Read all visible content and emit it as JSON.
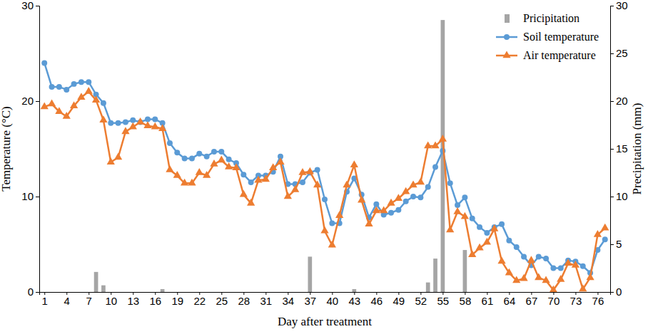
{
  "chart_data": {
    "type": "line",
    "x_label": "Day after treatment",
    "y_label": "Temperature (°C)",
    "y2_label": "Precipitation (mm)",
    "x": [
      1,
      2,
      3,
      4,
      5,
      6,
      7,
      8,
      9,
      10,
      11,
      12,
      13,
      14,
      15,
      16,
      17,
      18,
      19,
      20,
      21,
      22,
      23,
      24,
      25,
      26,
      27,
      28,
      29,
      30,
      31,
      32,
      33,
      34,
      35,
      36,
      37,
      38,
      39,
      40,
      41,
      42,
      43,
      44,
      45,
      46,
      47,
      48,
      49,
      50,
      51,
      52,
      53,
      54,
      55,
      56,
      57,
      58,
      59,
      60,
      61,
      62,
      63,
      64,
      65,
      66,
      67,
      68,
      69,
      70,
      71,
      72,
      73,
      74,
      75,
      76,
      77
    ],
    "xlim": [
      0.3,
      77.7
    ],
    "xticks": [
      1,
      4,
      7,
      10,
      13,
      16,
      19,
      22,
      25,
      28,
      31,
      34,
      37,
      40,
      43,
      46,
      49,
      52,
      55,
      58,
      61,
      64,
      67,
      70,
      73,
      76
    ],
    "ylim": [
      0,
      30
    ],
    "yticks": [
      0,
      10,
      20,
      30
    ],
    "y2lim": [
      0,
      30
    ],
    "y2ticks": [
      0,
      5,
      10,
      15,
      20,
      25,
      30
    ],
    "legend": "upper right",
    "series": [
      {
        "name": "Pricipitation",
        "type": "bar",
        "axis": "y2",
        "color": "#a5a5a5",
        "values": [
          0,
          0,
          0,
          0,
          0,
          0,
          0,
          2.1,
          0.7,
          0,
          0,
          0,
          0,
          0,
          0,
          0,
          0.3,
          0,
          0,
          0,
          0,
          0,
          0,
          0,
          0,
          0,
          0,
          0,
          0,
          0,
          0,
          0,
          0,
          0,
          0,
          0,
          3.7,
          0,
          0,
          0,
          0,
          0,
          0.3,
          0,
          0,
          0,
          0,
          0,
          0,
          0,
          0,
          0,
          1,
          3.5,
          28.5,
          0,
          0,
          4.4,
          0,
          0,
          0,
          0,
          0,
          0,
          0,
          0,
          0,
          0,
          0,
          0,
          0,
          0,
          0,
          0,
          0,
          0,
          0
        ]
      },
      {
        "name": "Soil temperature",
        "type": "line",
        "color": "#5b9bd5",
        "marker": "circle",
        "line_style": "solid",
        "values": [
          24,
          21.5,
          21.5,
          21.2,
          21.8,
          22,
          22,
          20.7,
          19.8,
          17.7,
          17.7,
          17.8,
          18,
          17.8,
          18.1,
          18.1,
          17.7,
          15.6,
          14.6,
          14,
          14,
          14.5,
          14.2,
          14.7,
          14.7,
          13.9,
          13.5,
          12.3,
          11.5,
          12.2,
          12.2,
          12.6,
          14.2,
          11.3,
          11.3,
          11.5,
          12.5,
          12.8,
          9.7,
          7.2,
          7.2,
          10.5,
          11.9,
          10.2,
          7.8,
          9.2,
          8.1,
          8.3,
          8.6,
          9.5,
          10,
          9.9,
          11,
          13.1,
          14.8,
          11.4,
          9.1,
          9.9,
          7.7,
          6.8,
          6.2,
          6.8,
          7.1,
          5.4,
          4.7,
          3.7,
          2.8,
          3.7,
          3.5,
          2.5,
          2.5,
          3.3,
          3.2,
          2.7,
          2,
          4.4,
          5.5
        ]
      },
      {
        "name": "Air temperature",
        "type": "line",
        "color": "#ed7d31",
        "marker": "triangle",
        "line_style": "solid",
        "values": [
          19.4,
          19.7,
          18.9,
          18.4,
          19.5,
          20.4,
          21,
          20.1,
          18,
          13.6,
          14.1,
          16.8,
          17.3,
          17.8,
          17.4,
          17.3,
          17.1,
          12.8,
          12.2,
          11.4,
          11.4,
          12.5,
          12.2,
          13.4,
          13.8,
          13.1,
          13,
          10.2,
          9.3,
          11.7,
          11.8,
          13,
          13.6,
          10,
          10.7,
          12.5,
          12.6,
          11.2,
          6.4,
          4.9,
          8,
          11.2,
          13.3,
          9.6,
          7.1,
          8.5,
          8.5,
          9.3,
          9.8,
          10.5,
          11.2,
          11.5,
          15.3,
          15.3,
          16,
          6.5,
          8.4,
          7.9,
          3.9,
          4.6,
          5.2,
          6.6,
          3.2,
          2,
          1.2,
          1.4,
          3.3,
          1.5,
          1.2,
          0.2,
          1.3,
          3,
          2.8,
          0.3,
          1.5,
          6,
          6.7
        ]
      }
    ]
  }
}
